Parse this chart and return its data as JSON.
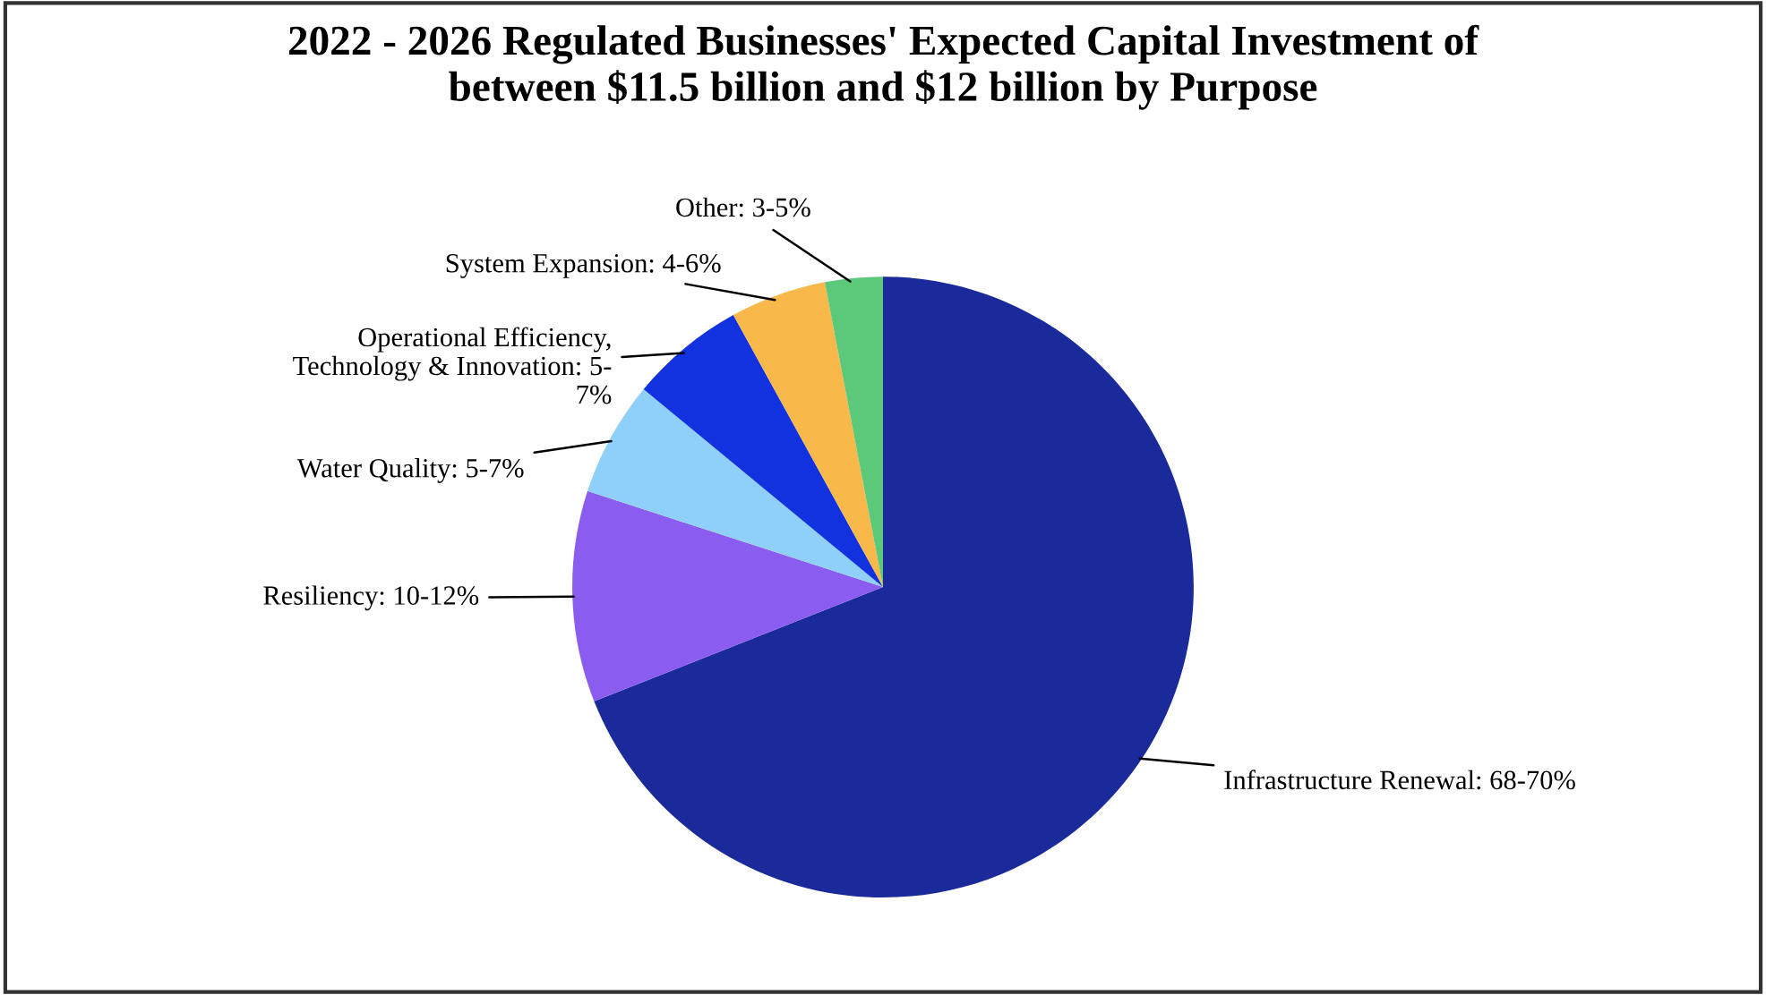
{
  "chart_data": {
    "type": "pie",
    "title": "2022 - 2026 Regulated Businesses' Expected Capital Investment of\nbetween $11.5 billion and $12 billion by Purpose",
    "categories": [
      "Infrastructure Renewal: 68-70%",
      "Resiliency: 10-12%",
      "Water Quality: 5-7%",
      "Operational Efficiency,\nTechnology & Innovation: 5-\n7%",
      "System Expansion: 4-6%",
      "Other: 3-5%"
    ],
    "values": [
      69,
      11,
      6,
      6,
      5,
      3
    ],
    "colors": [
      "#1b2a9a",
      "#8b5cf0",
      "#8fd0fb",
      "#1232df",
      "#f8b84a",
      "#5cc87a"
    ],
    "legend": false
  }
}
